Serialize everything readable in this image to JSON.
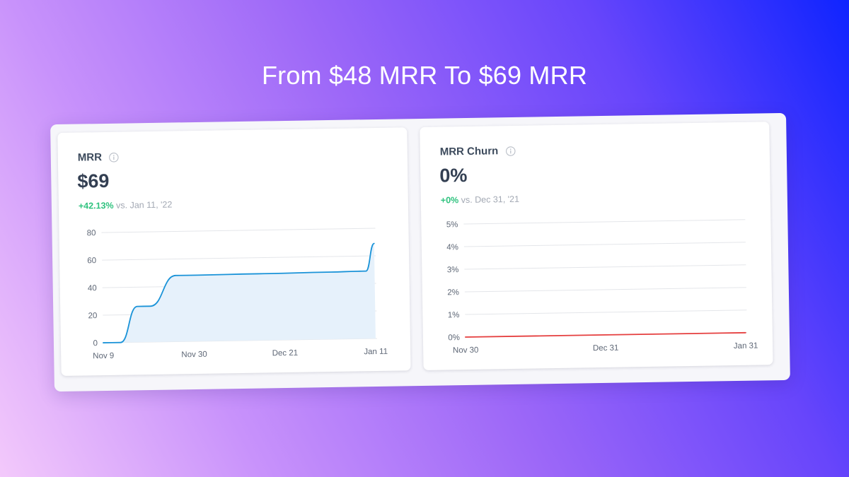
{
  "headline": "From $48 MRR To $69 MRR",
  "colors": {
    "mrr_line": "#1a93d8",
    "mrr_fill": "#e6f1fb",
    "churn_line": "#e53e3e",
    "delta_positive": "#2ec27e",
    "gridline": "#e4e6ea"
  },
  "cards": [
    {
      "title": "MRR",
      "icon": "info-icon",
      "value": "$69",
      "delta": "+42.13%",
      "comparison": "vs. Jan 11, '22"
    },
    {
      "title": "MRR Churn",
      "icon": "info-icon",
      "value": "0%",
      "delta": "+0%",
      "comparison": "vs. Dec 31, '21"
    }
  ],
  "chart_data": [
    {
      "type": "area",
      "title": "MRR",
      "xlabel": "",
      "ylabel": "",
      "x": [
        "Nov 9",
        "Nov 13",
        "Nov 17",
        "Nov 20",
        "Nov 26",
        "Dec 1",
        "Dec 15",
        "Jan 1",
        "Jan 7",
        "Jan 9",
        "Jan 11"
      ],
      "x_tick_labels": [
        "Nov 9",
        "Nov 30",
        "Dec 21",
        "Jan 11"
      ],
      "y_tick_labels": [
        "0",
        "20",
        "40",
        "60",
        "80"
      ],
      "ylim": [
        0,
        80
      ],
      "series": [
        {
          "values": [
            0,
            0,
            26,
            26,
            48,
            48,
            48.3,
            48.7,
            49,
            49,
            69
          ]
        }
      ],
      "grid": true
    },
    {
      "type": "line",
      "title": "MRR Churn",
      "xlabel": "",
      "ylabel": "",
      "x": [
        "Nov 30",
        "Dec 31",
        "Jan 31"
      ],
      "x_tick_labels": [
        "Nov 30",
        "Dec 31",
        "Jan 31"
      ],
      "y_tick_labels": [
        "0%",
        "1%",
        "2%",
        "3%",
        "4%",
        "5%"
      ],
      "ylim": [
        0,
        5
      ],
      "series": [
        {
          "values": [
            0,
            0,
            0
          ]
        }
      ],
      "grid": true
    }
  ]
}
